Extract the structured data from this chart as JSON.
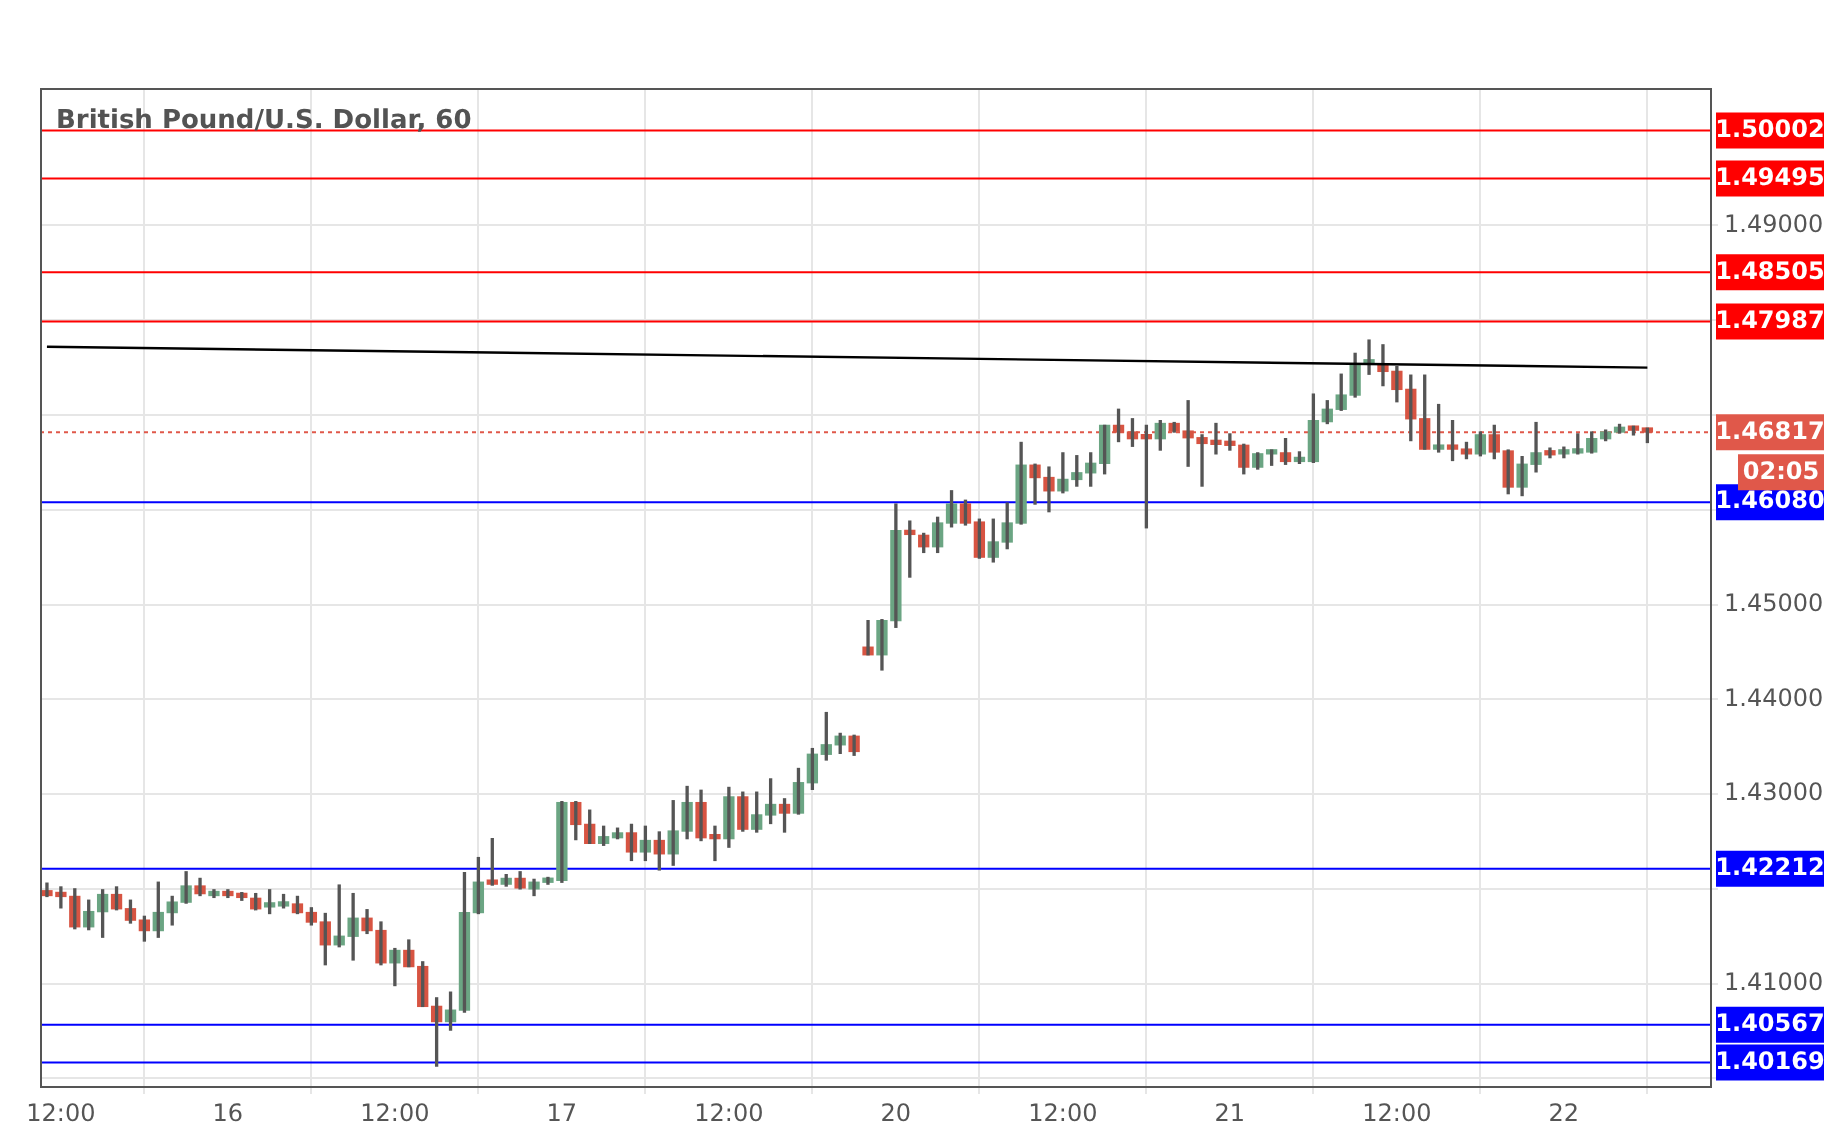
{
  "chart_data": {
    "type": "candlestick",
    "title": "British Pound/U.S. Dollar, 60",
    "categories": [
      null,
      "12:00",
      null,
      null,
      null,
      null,
      null,
      null,
      null,
      null,
      null,
      null,
      null,
      "16",
      null,
      null,
      null,
      null,
      null,
      null,
      null,
      null,
      null,
      null,
      null,
      "12:00",
      null,
      null,
      null,
      null,
      null,
      null,
      null,
      null,
      null,
      null,
      null,
      "17",
      null,
      null,
      null,
      null,
      null,
      null,
      null,
      null,
      null,
      null,
      null,
      "12:00",
      null,
      null,
      null,
      null,
      null,
      null,
      null,
      null,
      null,
      null,
      null,
      "20",
      null,
      null,
      null,
      null,
      null,
      null,
      null,
      null,
      null,
      null,
      null,
      "12:00",
      null,
      null,
      null,
      null,
      null,
      null,
      null,
      null,
      null,
      null,
      null,
      "21",
      null,
      null,
      null,
      null,
      null,
      null,
      null,
      null,
      null,
      null,
      null,
      "12:00",
      null,
      null,
      null,
      null,
      null,
      null,
      null,
      null,
      null,
      null,
      null,
      "22",
      null,
      null,
      null,
      null,
      null,
      null
    ],
    "ohlc": [
      [
        1.4198,
        1.4206,
        1.4192,
        1.4193
      ],
      [
        1.4195,
        1.4202,
        1.418,
        1.4192
      ],
      [
        1.4192,
        1.42,
        1.4158,
        1.416
      ],
      [
        1.416,
        1.4188,
        1.4157,
        1.4176
      ],
      [
        1.4176,
        1.4199,
        1.4149,
        1.4194
      ],
      [
        1.4194,
        1.4202,
        1.4178,
        1.4179
      ],
      [
        1.4179,
        1.4188,
        1.4164,
        1.4167
      ],
      [
        1.4167,
        1.4171,
        1.4145,
        1.4156
      ],
      [
        1.4156,
        1.4207,
        1.4149,
        1.4175
      ],
      [
        1.4175,
        1.4192,
        1.4162,
        1.4186
      ],
      [
        1.4186,
        1.4218,
        1.4185,
        1.4203
      ],
      [
        1.4203,
        1.4211,
        1.4193,
        1.4195
      ],
      [
        1.4193,
        1.4199,
        1.4191,
        1.4197
      ],
      [
        1.4196,
        1.4199,
        1.4191,
        1.4193
      ],
      [
        1.4193,
        1.4196,
        1.4188,
        1.4191
      ],
      [
        1.419,
        1.4195,
        1.4178,
        1.4179
      ],
      [
        1.4181,
        1.4199,
        1.4174,
        1.4182
      ],
      [
        1.4182,
        1.4194,
        1.418,
        1.4184
      ],
      [
        1.4184,
        1.4192,
        1.4174,
        1.4175
      ],
      [
        1.4175,
        1.418,
        1.4162,
        1.4165
      ],
      [
        1.4165,
        1.4174,
        1.412,
        1.4141
      ],
      [
        1.4141,
        1.4204,
        1.4139,
        1.415
      ],
      [
        1.415,
        1.4195,
        1.4125,
        1.4169
      ],
      [
        1.4169,
        1.4178,
        1.4153,
        1.4156
      ],
      [
        1.4156,
        1.4165,
        1.412,
        1.4122
      ],
      [
        1.4122,
        1.4137,
        1.4098,
        1.4135
      ],
      [
        1.4135,
        1.4146,
        1.4118,
        1.4118
      ],
      [
        1.4118,
        1.4123,
        1.4076,
        1.4076
      ],
      [
        1.4076,
        1.4085,
        1.4013,
        1.406
      ],
      [
        1.406,
        1.4091,
        1.4051,
        1.4072
      ],
      [
        1.4072,
        1.4217,
        1.407,
        1.4175
      ],
      [
        1.4175,
        1.4233,
        1.4174,
        1.4207
      ],
      [
        1.4207,
        1.4253,
        1.4204,
        1.4205
      ],
      [
        1.4205,
        1.4215,
        1.4203,
        1.4211
      ],
      [
        1.4211,
        1.4218,
        1.42,
        1.4201
      ],
      [
        1.42,
        1.421,
        1.4193,
        1.4207
      ],
      [
        1.4207,
        1.4212,
        1.4205,
        1.4209
      ],
      [
        1.4209,
        1.4292,
        1.4207,
        1.4291
      ],
      [
        1.4291,
        1.4292,
        1.4252,
        1.4268
      ],
      [
        1.4268,
        1.4283,
        1.4248,
        1.4248
      ],
      [
        1.4248,
        1.4266,
        1.4246,
        1.4255
      ],
      [
        1.4254,
        1.4264,
        1.4253,
        1.4259
      ],
      [
        1.4259,
        1.4268,
        1.423,
        1.4239
      ],
      [
        1.4239,
        1.4266,
        1.423,
        1.4251
      ],
      [
        1.4251,
        1.426,
        1.422,
        1.4237
      ],
      [
        1.4237,
        1.4293,
        1.4225,
        1.4261
      ],
      [
        1.4261,
        1.4308,
        1.4253,
        1.4291
      ],
      [
        1.4291,
        1.4304,
        1.4251,
        1.4254
      ],
      [
        1.4254,
        1.4266,
        1.423,
        1.4253
      ],
      [
        1.4253,
        1.4307,
        1.4244,
        1.4297
      ],
      [
        1.4297,
        1.4302,
        1.4261,
        1.4263
      ],
      [
        1.4263,
        1.4302,
        1.426,
        1.4278
      ],
      [
        1.4278,
        1.4316,
        1.4269,
        1.4289
      ],
      [
        1.4289,
        1.4295,
        1.426,
        1.428
      ],
      [
        1.428,
        1.4327,
        1.4279,
        1.4312
      ],
      [
        1.4312,
        1.4348,
        1.4305,
        1.4342
      ],
      [
        1.4342,
        1.4386,
        1.4336,
        1.4352
      ],
      [
        1.4352,
        1.4364,
        1.4343,
        1.4361
      ],
      [
        1.4361,
        1.4362,
        1.4341,
        1.4345
      ],
      [
        1.4455,
        1.4483,
        1.4447,
        1.4447
      ],
      [
        1.4447,
        1.4484,
        1.4431,
        1.4483
      ],
      [
        1.4483,
        1.4606,
        1.4476,
        1.4578
      ],
      [
        1.4578,
        1.4588,
        1.4529,
        1.4574
      ],
      [
        1.4573,
        1.4575,
        1.4555,
        1.4561
      ],
      [
        1.4561,
        1.4592,
        1.4555,
        1.4586
      ],
      [
        1.4586,
        1.462,
        1.4582,
        1.4606
      ],
      [
        1.4606,
        1.461,
        1.4584,
        1.4586
      ],
      [
        1.4587,
        1.459,
        1.4549,
        1.455
      ],
      [
        1.455,
        1.459,
        1.4545,
        1.4566
      ],
      [
        1.4566,
        1.4607,
        1.4559,
        1.4586
      ],
      [
        1.4586,
        1.4671,
        1.4585,
        1.4647
      ],
      [
        1.4647,
        1.4648,
        1.4606,
        1.4634
      ],
      [
        1.4634,
        1.4645,
        1.4598,
        1.462
      ],
      [
        1.462,
        1.466,
        1.4618,
        1.4632
      ],
      [
        1.4632,
        1.4657,
        1.4625,
        1.4639
      ],
      [
        1.4639,
        1.466,
        1.4625,
        1.4649
      ],
      [
        1.4649,
        1.4689,
        1.4638,
        1.4689
      ],
      [
        1.4689,
        1.4706,
        1.4672,
        1.4682
      ],
      [
        1.4682,
        1.4696,
        1.4667,
        1.4675
      ],
      [
        1.4676,
        1.4689,
        1.4581,
        1.4675
      ],
      [
        1.4675,
        1.4694,
        1.4663,
        1.4691
      ],
      [
        1.4691,
        1.4692,
        1.4682,
        1.4683
      ],
      [
        1.4683,
        1.4715,
        1.4646,
        1.4676
      ],
      [
        1.4676,
        1.4679,
        1.4625,
        1.467
      ],
      [
        1.467,
        1.4691,
        1.4659,
        1.4669
      ],
      [
        1.4669,
        1.468,
        1.4663,
        1.4668
      ],
      [
        1.4668,
        1.4669,
        1.4638,
        1.4645
      ],
      [
        1.4645,
        1.466,
        1.4643,
        1.4659
      ],
      [
        1.4659,
        1.4663,
        1.4647,
        1.466
      ],
      [
        1.466,
        1.4675,
        1.4648,
        1.4651
      ],
      [
        1.4651,
        1.4661,
        1.4649,
        1.4652
      ],
      [
        1.4651,
        1.4722,
        1.465,
        1.4694
      ],
      [
        1.4693,
        1.4715,
        1.4691,
        1.4706
      ],
      [
        1.4706,
        1.4743,
        1.4705,
        1.4721
      ],
      [
        1.4721,
        1.4765,
        1.4719,
        1.4754
      ],
      [
        1.4754,
        1.4779,
        1.4743,
        1.4755
      ],
      [
        1.4754,
        1.4774,
        1.4731,
        1.4746
      ],
      [
        1.4746,
        1.4751,
        1.4714,
        1.4727
      ],
      [
        1.4727,
        1.4742,
        1.4673,
        1.4696
      ],
      [
        1.4696,
        1.4742,
        1.4664,
        1.4664
      ],
      [
        1.4664,
        1.4711,
        1.4661,
        1.4666
      ],
      [
        1.4666,
        1.4694,
        1.4652,
        1.4664
      ],
      [
        1.4664,
        1.4671,
        1.4654,
        1.4659
      ],
      [
        1.4659,
        1.4682,
        1.4657,
        1.4679
      ],
      [
        1.4679,
        1.4689,
        1.4654,
        1.4661
      ],
      [
        1.4662,
        1.4663,
        1.4617,
        1.4624
      ],
      [
        1.4624,
        1.4656,
        1.4615,
        1.4648
      ],
      [
        1.4648,
        1.4692,
        1.464,
        1.466
      ],
      [
        1.466,
        1.4665,
        1.4655,
        1.4658
      ],
      [
        1.4659,
        1.4666,
        1.4655,
        1.466
      ],
      [
        1.466,
        1.468,
        1.4659,
        1.4662
      ],
      [
        1.4661,
        1.4682,
        1.466,
        1.4675
      ],
      [
        1.4675,
        1.4684,
        1.4673,
        1.4682
      ],
      [
        1.4682,
        1.469,
        1.4681,
        1.4687
      ],
      [
        1.4687,
        1.4688,
        1.4679,
        1.4684
      ],
      [
        1.4684,
        1.4686,
        1.4671,
        1.4682
      ]
    ],
    "colors": [
      "#d75442",
      "#d75442",
      "#d75442",
      "#6ba583",
      "#6ba583",
      "#d75442",
      "#d75442",
      "#d75442",
      "#6ba583",
      "#6ba583",
      "#6ba583",
      "#d75442",
      "#6ba583",
      "#d75442",
      "#d75442",
      "#d75442",
      "#6ba583",
      "#6ba583",
      "#d75442",
      "#d75442",
      "#d75442",
      "#6ba583",
      "#6ba583",
      "#d75442",
      "#d75442",
      "#6ba583",
      "#d75442",
      "#d75442",
      "#d75442",
      "#6ba583",
      "#6ba583",
      "#6ba583",
      "#d75442",
      "#6ba583",
      "#d75442",
      "#6ba583",
      "#6ba583",
      "#6ba583",
      "#d75442",
      "#d75442",
      "#6ba583",
      "#6ba583",
      "#d75442",
      "#6ba583",
      "#d75442",
      "#6ba583",
      "#6ba583",
      "#d75442",
      "#d75442",
      "#6ba583",
      "#d75442",
      "#6ba583",
      "#6ba583",
      "#d75442",
      "#6ba583",
      "#6ba583",
      "#6ba583",
      "#6ba583",
      "#d75442",
      "#d75442",
      "#6ba583",
      "#6ba583",
      "#d75442",
      "#d75442",
      "#6ba583",
      "#6ba583",
      "#d75442",
      "#d75442",
      "#6ba583",
      "#6ba583",
      "#6ba583",
      "#d75442",
      "#d75442",
      "#6ba583",
      "#6ba583",
      "#6ba583",
      "#6ba583",
      "#d75442",
      "#d75442",
      "#d75442",
      "#6ba583",
      "#d75442",
      "#d75442",
      "#d75442",
      "#d75442",
      "#d75442",
      "#d75442",
      "#6ba583",
      "#6ba583",
      "#d75442",
      "#6ba583",
      "#6ba583",
      "#6ba583",
      "#6ba583",
      "#6ba583",
      "#6ba583",
      "#d75442",
      "#d75442",
      "#d75442",
      "#d75442",
      "#6ba583",
      "#d75442",
      "#d75442",
      "#6ba583",
      "#d75442",
      "#d75442",
      "#6ba583",
      "#6ba583",
      "#d75442",
      "#6ba583",
      "#6ba583",
      "#6ba583",
      "#6ba583",
      "#6ba583",
      "#d75442",
      "#d75442"
    ],
    "series": [
      {
        "type": "line",
        "color": "#000000",
        "values": [
          1.4772,
          null,
          null,
          null,
          null,
          null,
          null,
          null,
          null,
          null,
          null,
          null,
          null,
          null,
          null,
          null,
          null,
          null,
          null,
          null,
          null,
          null,
          null,
          null,
          null,
          null,
          null,
          null,
          null,
          null,
          null,
          null,
          null,
          null,
          null,
          null,
          null,
          null,
          null,
          null,
          null,
          null,
          null,
          null,
          null,
          null,
          null,
          null,
          null,
          null,
          null,
          null,
          null,
          null,
          null,
          null,
          null,
          null,
          null,
          null,
          null,
          null,
          null,
          null,
          null,
          null,
          null,
          null,
          null,
          null,
          null,
          null,
          null,
          null,
          null,
          null,
          null,
          null,
          null,
          null,
          null,
          null,
          null,
          null,
          null,
          null,
          null,
          null,
          null,
          null,
          null,
          null,
          null,
          null,
          null,
          null,
          null,
          null,
          null,
          null,
          null,
          null,
          null,
          null,
          null,
          null,
          null,
          null,
          null,
          null,
          null,
          null,
          null,
          null,
          null,
          1.475
        ]
      }
    ],
    "ylim": [
      1.3992,
      1.5045
    ],
    "yticks": [
      {
        "value": 1.4,
        "label": null
      },
      {
        "value": 1.41,
        "label": "1.41000"
      },
      {
        "value": 1.42,
        "label": null
      },
      {
        "value": 1.43,
        "label": "1.43000"
      },
      {
        "value": 1.44,
        "label": "1.44000"
      },
      {
        "value": 1.45,
        "label": "1.45000"
      },
      {
        "value": 1.46,
        "label": null
      },
      {
        "value": 1.47,
        "label": null
      },
      {
        "value": 1.48,
        "label": null
      },
      {
        "value": 1.49,
        "label": "1.49000"
      }
    ],
    "ref_lines": [
      {
        "axis": "y",
        "value": 1.50002,
        "label": "1.50002",
        "color": "#ff0000"
      },
      {
        "axis": "y",
        "value": 1.49495,
        "label": "1.49495",
        "color": "#ff0000"
      },
      {
        "axis": "y",
        "value": 1.48505,
        "label": "1.48505",
        "color": "#ff0000"
      },
      {
        "axis": "y",
        "value": 1.47987,
        "label": "1.47987",
        "color": "#ff0000"
      },
      {
        "axis": "y",
        "value": 1.46817,
        "label": "1.46817",
        "color": "#e0584a",
        "line_style": "dotted"
      },
      {
        "axis": "y",
        "value": 1.4608,
        "label": "1.46080",
        "color": "#0000ff"
      },
      {
        "axis": "y",
        "value": 1.42212,
        "label": "1.42212",
        "color": "#0000ff"
      },
      {
        "axis": "y",
        "value": 1.40567,
        "label": "1.40567",
        "color": "#0000ff"
      },
      {
        "axis": "y",
        "value": 1.40169,
        "label": "1.40169",
        "color": "#0000ff"
      }
    ],
    "annotations": [
      "02:05"
    ],
    "grid": true,
    "legend": false
  }
}
